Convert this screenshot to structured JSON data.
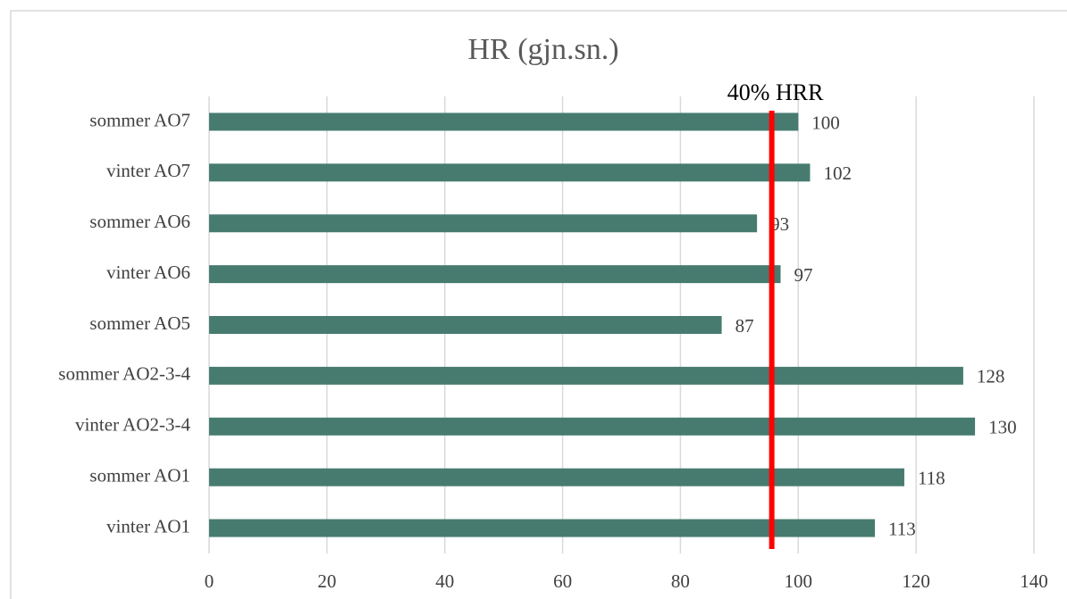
{
  "chart_data": {
    "type": "bar",
    "orientation": "horizontal",
    "title": "HR (gjn.sn.)",
    "categories": [
      "sommer AO7",
      "vinter AO7",
      "sommer AO6",
      "vinter AO6",
      "sommer AO5",
      "sommer AO2-3-4",
      "vinter AO2-3-4",
      "sommer AO1",
      "vinter AO1"
    ],
    "values": [
      100,
      102,
      93,
      97,
      87,
      128,
      130,
      118,
      113
    ],
    "color": "#477b70",
    "xlim": [
      0,
      140
    ],
    "xticks": [
      0,
      20,
      40,
      60,
      80,
      100,
      120,
      140
    ],
    "grid": true,
    "reference_line": {
      "label": "40% HRR",
      "value": 95.5,
      "color": "#ff0000"
    }
  }
}
